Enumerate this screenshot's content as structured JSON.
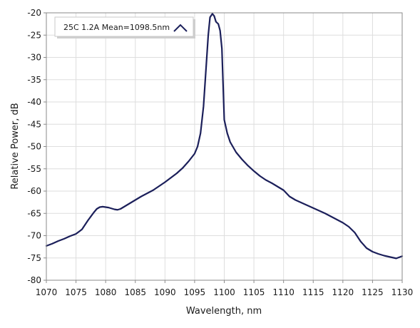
{
  "chart_data": {
    "type": "line",
    "xlabel": "Wavelength, nm",
    "ylabel": "Relative Power, dB",
    "xlim": [
      1070,
      1130
    ],
    "ylim": [
      -80,
      -20
    ],
    "xticks": [
      1070,
      1075,
      1080,
      1085,
      1090,
      1095,
      1100,
      1105,
      1110,
      1115,
      1120,
      1125,
      1130
    ],
    "yticks": [
      -20,
      -25,
      -30,
      -35,
      -40,
      -45,
      -50,
      -55,
      -60,
      -65,
      -70,
      -75,
      -80
    ],
    "grid": true,
    "legend": {
      "placement": "top-left"
    },
    "series": [
      {
        "name": "25C 1.2A Mean=1098.5nm",
        "color": "#1b1f5a",
        "x": [
          1070,
          1071,
          1072,
          1073,
          1074,
          1075,
          1076,
          1077,
          1078,
          1078.5,
          1079,
          1079.5,
          1080,
          1080.5,
          1081,
          1081.5,
          1082,
          1082.5,
          1083,
          1084,
          1085,
          1086,
          1087,
          1088,
          1089,
          1090,
          1091,
          1092,
          1093,
          1094,
          1095,
          1095.5,
          1096,
          1096.5,
          1097,
          1097.3,
          1097.6,
          1098,
          1098.3,
          1098.6,
          1099,
          1099.3,
          1099.6,
          1099.8,
          1100,
          1100.5,
          1101,
          1102,
          1103,
          1104,
          1105,
          1106,
          1107,
          1108,
          1109,
          1110,
          1111,
          1112,
          1113,
          1114,
          1115,
          1116,
          1117,
          1118,
          1119,
          1120,
          1121,
          1122,
          1123,
          1124,
          1125,
          1126,
          1127,
          1128,
          1129,
          1130
        ],
        "y": [
          -72.3,
          -71.8,
          -71.2,
          -70.7,
          -70.1,
          -69.6,
          -68.6,
          -66.6,
          -64.8,
          -64.0,
          -63.6,
          -63.5,
          -63.6,
          -63.7,
          -63.9,
          -64.1,
          -64.2,
          -64.0,
          -63.6,
          -62.8,
          -62.0,
          -61.2,
          -60.5,
          -59.8,
          -58.9,
          -58.0,
          -57.0,
          -56.0,
          -54.8,
          -53.3,
          -51.6,
          -50.0,
          -47.0,
          -41.0,
          -31.0,
          -25.0,
          -21.0,
          -20.2,
          -20.7,
          -22.0,
          -22.5,
          -24.0,
          -28.0,
          -36.0,
          -44.0,
          -47.0,
          -49.0,
          -51.3,
          -52.9,
          -54.3,
          -55.5,
          -56.6,
          -57.5,
          -58.2,
          -59.0,
          -59.8,
          -61.2,
          -62.0,
          -62.6,
          -63.2,
          -63.8,
          -64.4,
          -65.0,
          -65.7,
          -66.4,
          -67.1,
          -68.0,
          -69.3,
          -71.3,
          -72.8,
          -73.6,
          -74.1,
          -74.5,
          -74.8,
          -75.1,
          -74.6
        ]
      }
    ]
  }
}
